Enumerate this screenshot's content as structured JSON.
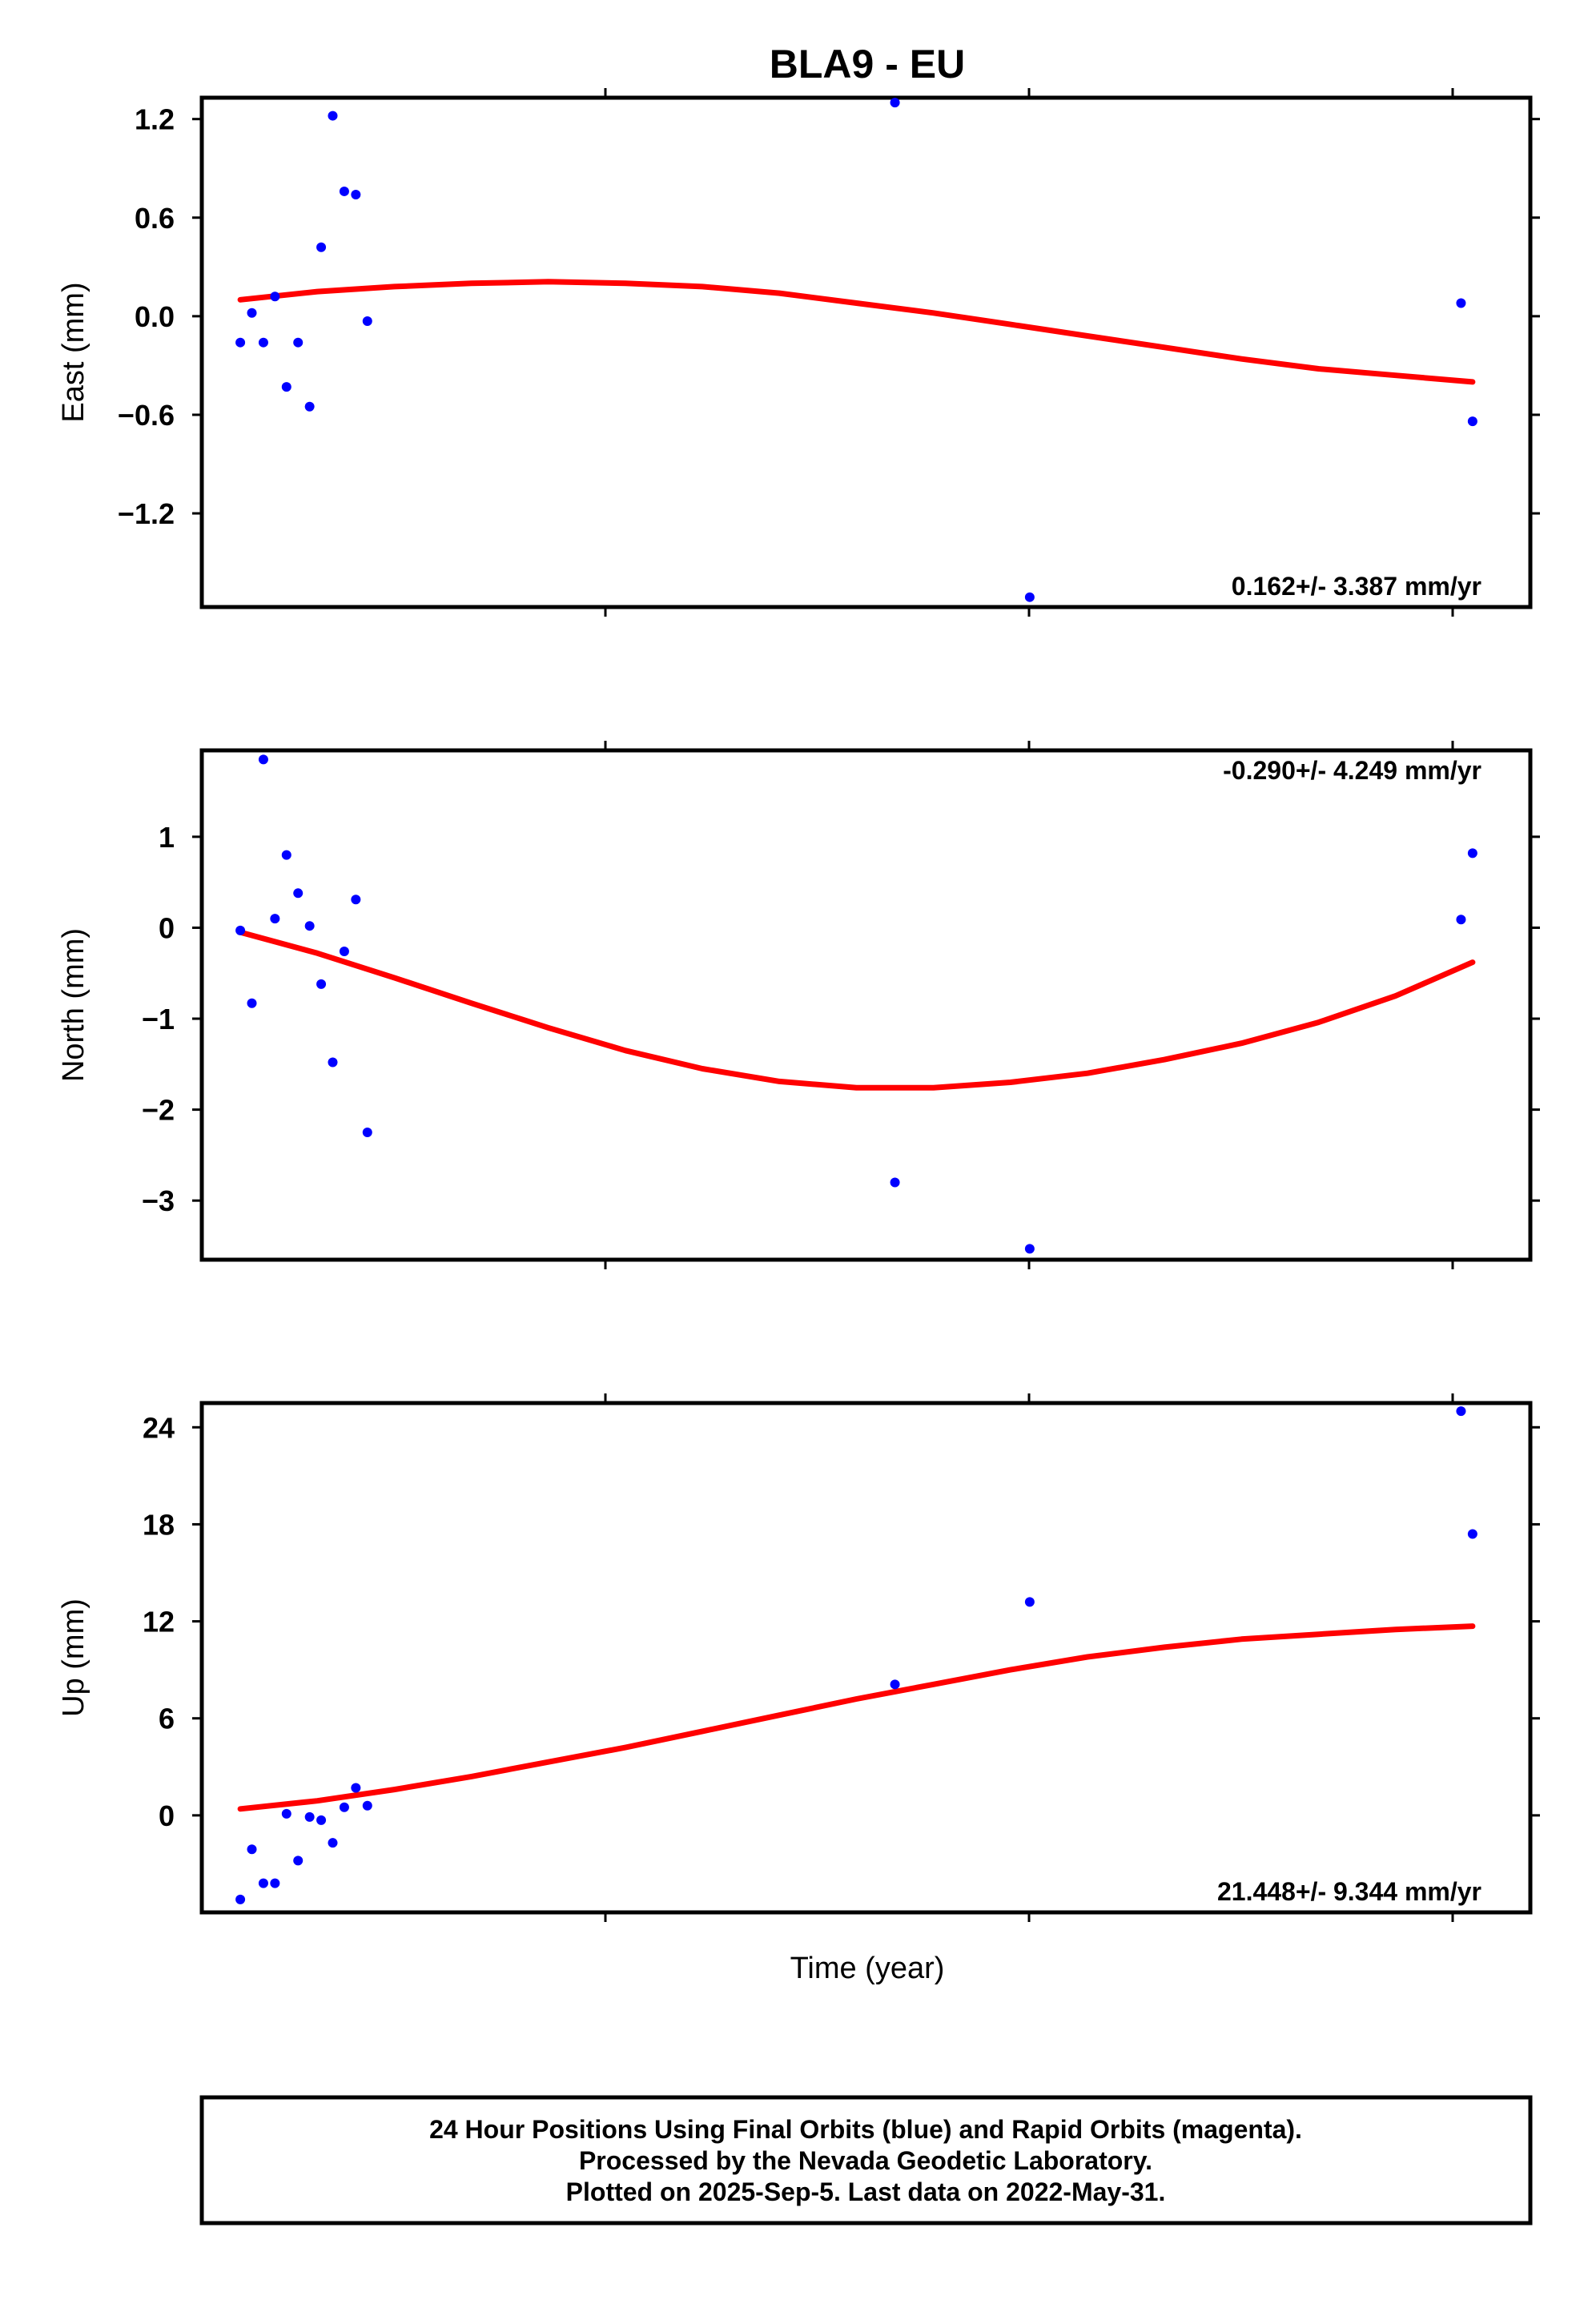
{
  "title": "BLA9 - EU",
  "xlabel": "Time (year)",
  "footer": {
    "lines": [
      "24 Hour Positions Using Final Orbits (blue) and Rapid Orbits (magenta).",
      "Processed by the Nevada Geodetic Laboratory.",
      "Plotted on 2025-Sep-5. Last data on 2022-May-31."
    ]
  },
  "colors": {
    "points": "#0000ff",
    "fit": "#ff0000",
    "frame": "#000000"
  },
  "chart_data": [
    {
      "type": "scatter",
      "ylabel": "East (mm)",
      "rate_text": "0.162+/- 3.387 mm/yr",
      "ylim": [
        -1.77,
        1.33
      ],
      "yticks": [
        1.2,
        0.6,
        0.0,
        -0.6,
        -1.2
      ],
      "ytick_labels": [
        "1.2",
        "0.6",
        "0.0",
        "−0.6",
        "−1.2"
      ],
      "x": [
        0.0,
        0.3,
        0.6,
        0.9,
        1.2,
        1.5,
        1.8,
        2.1,
        2.4,
        2.7,
        3.0,
        3.3,
        17.0,
        20.5,
        31.7,
        32.0
      ],
      "y": [
        -0.16,
        0.02,
        -0.16,
        0.12,
        -0.43,
        -0.16,
        -0.55,
        0.42,
        1.22,
        0.76,
        0.74,
        -0.03,
        1.3,
        -1.71,
        0.08,
        -0.64
      ],
      "fit": {
        "x": [
          0,
          2,
          4,
          6,
          8,
          10,
          12,
          14,
          16,
          18,
          20,
          22,
          24,
          26,
          28,
          30,
          32
        ],
        "y": [
          0.1,
          0.15,
          0.18,
          0.2,
          0.21,
          0.2,
          0.18,
          0.14,
          0.08,
          0.02,
          -0.05,
          -0.12,
          -0.19,
          -0.26,
          -0.32,
          -0.36,
          -0.4
        ]
      }
    },
    {
      "type": "scatter",
      "ylabel": "North (mm)",
      "rate_text": "-0.290+/- 4.249 mm/yr",
      "ylim": [
        -3.65,
        1.95
      ],
      "yticks": [
        1,
        0,
        -1,
        -2,
        -3
      ],
      "ytick_labels": [
        "1",
        "0",
        "−1",
        "−2",
        "−3"
      ],
      "x": [
        0.0,
        0.3,
        0.6,
        0.9,
        1.2,
        1.5,
        1.8,
        2.1,
        2.4,
        2.7,
        3.0,
        3.3,
        17.0,
        20.5,
        31.7,
        32.0
      ],
      "y": [
        -0.03,
        -0.83,
        1.85,
        0.1,
        0.8,
        0.38,
        0.02,
        -0.62,
        -1.48,
        -0.26,
        0.31,
        -2.25,
        -2.8,
        -3.53,
        0.09,
        0.82
      ],
      "fit": {
        "x": [
          0,
          2,
          4,
          6,
          8,
          10,
          12,
          14,
          16,
          18,
          20,
          22,
          24,
          26,
          28,
          30,
          32
        ],
        "y": [
          -0.05,
          -0.28,
          -0.55,
          -0.83,
          -1.1,
          -1.35,
          -1.55,
          -1.69,
          -1.76,
          -1.76,
          -1.7,
          -1.6,
          -1.45,
          -1.27,
          -1.04,
          -0.75,
          -0.38
        ]
      }
    },
    {
      "type": "scatter",
      "ylabel": "Up (mm)",
      "rate_text": "21.448+/- 9.344 mm/yr",
      "ylim": [
        -6,
        25.5
      ],
      "yticks": [
        24,
        18,
        12,
        6,
        0
      ],
      "ytick_labels": [
        "24",
        "18",
        "12",
        "6",
        "0"
      ],
      "x": [
        0.0,
        0.3,
        0.6,
        0.9,
        1.2,
        1.5,
        1.8,
        2.1,
        2.4,
        2.7,
        3.0,
        3.3,
        17.0,
        20.5,
        31.7,
        32.0
      ],
      "y": [
        -5.2,
        -2.1,
        -4.2,
        -4.2,
        0.1,
        -2.8,
        -0.1,
        -0.3,
        -1.7,
        0.5,
        1.7,
        0.6,
        8.1,
        13.2,
        25.0,
        17.4
      ],
      "fit": {
        "x": [
          0,
          2,
          4,
          6,
          8,
          10,
          12,
          14,
          16,
          18,
          20,
          22,
          24,
          26,
          28,
          30,
          32
        ],
        "y": [
          0.4,
          0.9,
          1.6,
          2.4,
          3.3,
          4.2,
          5.2,
          6.2,
          7.2,
          8.1,
          9.0,
          9.8,
          10.4,
          10.9,
          11.2,
          11.5,
          11.7
        ]
      }
    }
  ]
}
